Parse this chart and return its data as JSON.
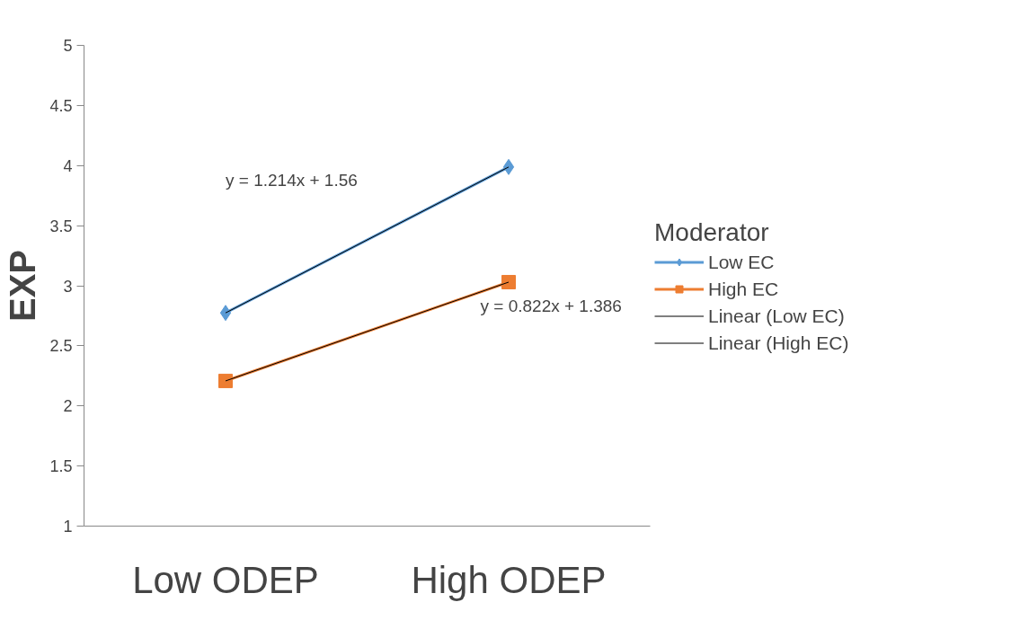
{
  "chart_data": {
    "type": "line",
    "ylabel": "EXP",
    "legend_title": "Moderator",
    "categories": [
      "Low ODEP",
      "High ODEP"
    ],
    "series": [
      {
        "name": "Low EC",
        "color": "#5b9bd5",
        "values": [
          2.774,
          3.988
        ],
        "marker": "diamond"
      },
      {
        "name": "High EC",
        "color": "#ed7d31",
        "values": [
          2.208,
          3.03
        ],
        "marker": "square"
      },
      {
        "name": "Linear (Low EC)",
        "color": "#000000",
        "values": [
          2.774,
          3.988
        ],
        "marker": "none"
      },
      {
        "name": "Linear (High EC)",
        "color": "#000000",
        "values": [
          2.208,
          3.03
        ],
        "marker": "none"
      }
    ],
    "annotations": [
      "y = 1.214x + 1.56",
      "y = 0.822x + 1.386"
    ],
    "ylim": [
      1,
      5
    ],
    "yticks": [
      1,
      1.5,
      2,
      2.5,
      3,
      3.5,
      4,
      4.5,
      5
    ],
    "grid": false,
    "legend": "right",
    "line_style": "solid"
  }
}
